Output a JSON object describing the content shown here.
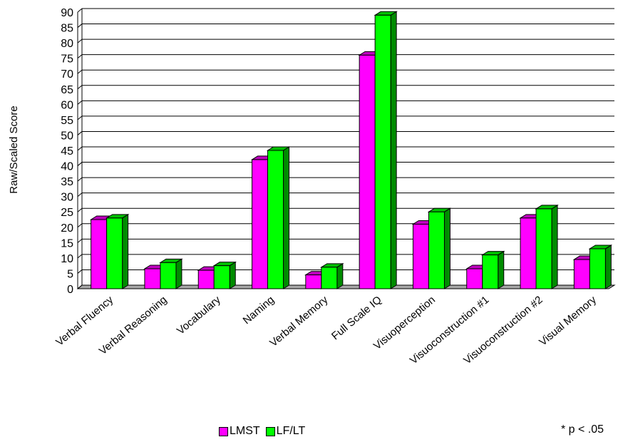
{
  "chart_data": {
    "type": "bar",
    "ylabel": "Raw/Scaled Score",
    "ylim": [
      0,
      90
    ],
    "yticks": [
      0,
      5,
      10,
      15,
      20,
      25,
      30,
      35,
      40,
      45,
      50,
      55,
      60,
      65,
      70,
      75,
      80,
      85,
      90
    ],
    "grid": true,
    "legend_position": "bottom-center",
    "categories": [
      "Verbal Fluency",
      "Verbal Reasoning",
      "Vocabulary",
      "Naming",
      "Verbal Memory",
      "Full Scale IQ",
      "Visuoperception",
      "Visuoconstruction #1",
      "Visuoconstruction #2",
      "Visual Memory"
    ],
    "series": [
      {
        "name": "LMST",
        "color": "#ff00ff",
        "values": [
          22.5,
          6.5,
          6,
          42,
          4.5,
          76,
          21,
          6.5,
          23,
          9.5
        ]
      },
      {
        "name": "LF/LT",
        "color": "#00ff00",
        "values": [
          23,
          8.5,
          7.5,
          45,
          7,
          89,
          25,
          11,
          26,
          13
        ]
      }
    ],
    "footnote": "* p < .05"
  }
}
